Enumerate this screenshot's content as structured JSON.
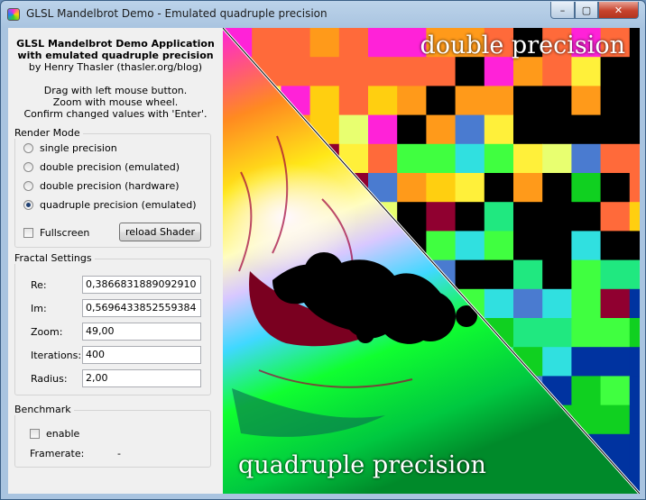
{
  "window": {
    "title": "GLSL Mandelbrot Demo - Emulated quadruple precision",
    "buttons": {
      "minimize": "–",
      "maximize": "▢",
      "close": "✕"
    }
  },
  "intro": {
    "title_line1": "GLSL Mandelbrot Demo Application",
    "title_line2": "with emulated quadruple precision",
    "author": "by Henry Thasler (thasler.org/blog)",
    "help1": "Drag with left mouse button.",
    "help2": "Zoom with mouse wheel.",
    "help3": "Confirm changed values with 'Enter'."
  },
  "render_mode": {
    "title": "Render Mode",
    "options": [
      {
        "label": "single precision",
        "selected": false
      },
      {
        "label": "double precision (emulated)",
        "selected": false
      },
      {
        "label": "double precision (hardware)",
        "selected": false
      },
      {
        "label": "quadruple precision (emulated)",
        "selected": true
      }
    ],
    "fullscreen_label": "Fullscreen",
    "fullscreen_checked": false,
    "reload_label": "reload Shader"
  },
  "fractal": {
    "title": "Fractal Settings",
    "re_label": "Re:",
    "re_value": "0,3866831889092910",
    "im_label": "Im:",
    "im_value": "0,5696433852559384",
    "zoom_label": "Zoom:",
    "zoom_value": "49,00",
    "iterations_label": "Iterations:",
    "iterations_value": "400",
    "radius_label": "Radius:",
    "radius_value": "2,00"
  },
  "benchmark": {
    "title": "Benchmark",
    "enable_label": "enable",
    "enable_checked": false,
    "framerate_label": "Framerate:",
    "framerate_value": "-"
  },
  "render": {
    "double_label": "double precision",
    "quad_label": "quadruple precision"
  },
  "colors": {
    "accent": "#1e3f73",
    "palette": [
      "#ff22d8",
      "#ff6a3a",
      "#ff9a1a",
      "#ffcf10",
      "#fff03a",
      "#e8ff70",
      "#40ff40",
      "#10d020",
      "#20e880",
      "#30e0e0",
      "#4a7bd0",
      "#0033a0",
      "#000000",
      "#900030"
    ]
  }
}
